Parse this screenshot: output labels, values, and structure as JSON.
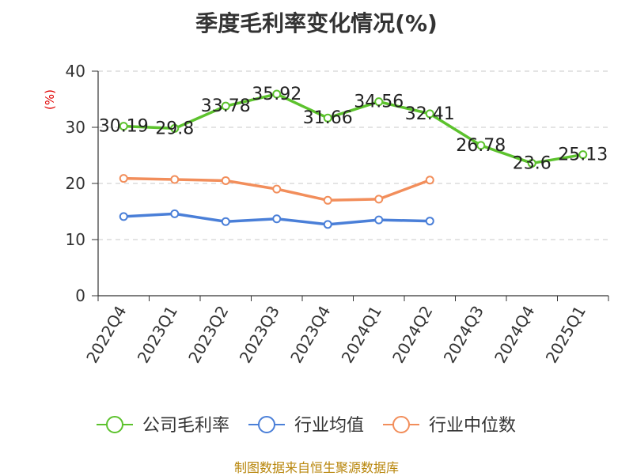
{
  "title": "季度毛利率变化情况(%)",
  "source": "制图数据来自恒生聚源数据库",
  "chart_data": {
    "type": "line",
    "title": "季度毛利率变化情况(%)",
    "ylabel": "(%)",
    "xlabel": "",
    "ylim": [
      0,
      40
    ],
    "yticks": [
      0,
      10,
      20,
      30,
      40
    ],
    "grid": true,
    "legend_position": "bottom",
    "categories": [
      "2022Q4",
      "2023Q1",
      "2023Q2",
      "2023Q3",
      "2023Q4",
      "2024Q1",
      "2024Q2",
      "2024Q3",
      "2024Q4",
      "2025Q1"
    ],
    "series": [
      {
        "name": "公司毛利率",
        "color": "#5cc22d",
        "values": [
          30.19,
          29.8,
          33.78,
          35.92,
          31.66,
          34.56,
          32.41,
          26.78,
          23.6,
          25.13
        ],
        "labels": [
          "30.19",
          "29.8",
          "33.78",
          "35.92",
          "31.66",
          "34.56",
          "32.41",
          "26.78",
          "23.6",
          "25.13"
        ]
      },
      {
        "name": "行业均值",
        "color": "#4a7fd8",
        "values": [
          14.1,
          14.6,
          13.2,
          13.7,
          12.7,
          13.5,
          13.3,
          null,
          null,
          null
        ]
      },
      {
        "name": "行业中位数",
        "color": "#f28e5b",
        "values": [
          20.9,
          20.7,
          20.5,
          19.0,
          17.0,
          17.2,
          20.6,
          null,
          null,
          null
        ]
      }
    ]
  }
}
